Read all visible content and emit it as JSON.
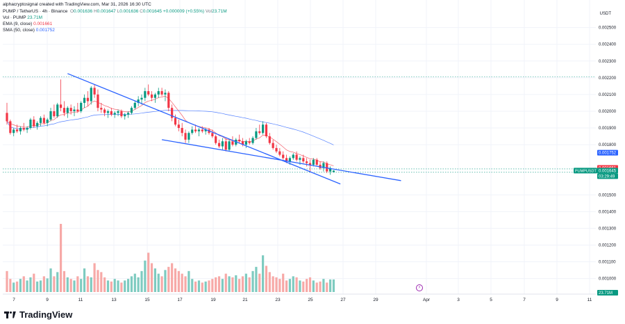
{
  "header": {
    "created_by": "alphacryptosignal created with TradingView.com, Mar 31, 2026 16:30 UTC",
    "symbol_line": "PUMP / TetherUS · 4h · Binance",
    "ohlc": {
      "O": "0.001636",
      "H": "0.001647",
      "L": "0.001636",
      "C": "0.001645",
      "change": "+0.000009 (+0.55%)",
      "vol": "23.71M"
    },
    "vol_line": {
      "label": "Vol · PUMP",
      "value": "23.71M"
    },
    "ema_line": {
      "label": "EMA (9, close)",
      "value": "0.001661"
    },
    "sma_line": {
      "label": "SMA (50, close)",
      "value": "0.001752"
    }
  },
  "currency_label": "USDT",
  "brand": "TradingView",
  "colors": {
    "up": "#089981",
    "down": "#f23645",
    "trendline": "#2962ff",
    "sma": "#2962ff",
    "ema": "#f23645",
    "grid": "#f0f3fa"
  },
  "chart_data": {
    "type": "candlestick",
    "timeframe": "4h",
    "x_tick_labels": [
      "7",
      "9",
      "11",
      "13",
      "15",
      "17",
      "19",
      "21",
      "23",
      "25",
      "27",
      "29",
      "Apr",
      "3",
      "5",
      "7",
      "9",
      "11"
    ],
    "y_tick_labels": [
      "0.002500",
      "0.002400",
      "0.002300",
      "0.002200",
      "0.002100",
      "0.002000",
      "0.001900",
      "0.001800",
      "0.001500",
      "0.001400",
      "0.001300",
      "0.001200",
      "0.001100",
      "0.001000"
    ],
    "ylim": [
      0.000965,
      0.00259
    ],
    "price_labels": [
      {
        "name": "SMA (50)",
        "value": "0.001752"
      },
      {
        "name": "EMA (9)",
        "value": "0.001661"
      },
      {
        "name": "PUMPUSDT",
        "value": "0.001645"
      },
      {
        "name": "countdown",
        "value": "03:29:49"
      },
      {
        "name": "Volume",
        "value": "23.71M"
      }
    ],
    "dashed_levels": [
      0.002205,
      0.001655,
      0.001635
    ],
    "trendlines": [
      {
        "name": "upper",
        "from": [
          18.0,
          0.002225
        ],
        "to": [
          99.0,
          0.001565
        ]
      },
      {
        "name": "lower",
        "from": [
          46.0,
          0.00183
        ],
        "to": [
          117.0,
          0.001585
        ]
      }
    ],
    "candles": [
      [
        0,
        0.00199,
        0.00205,
        0.00192,
        0.00194
      ],
      [
        1,
        0.00194,
        0.00195,
        0.00186,
        0.00187
      ],
      [
        2,
        0.00187,
        0.0019,
        0.00185,
        0.00189
      ],
      [
        3,
        0.00189,
        0.00192,
        0.00187,
        0.00188
      ],
      [
        4,
        0.00188,
        0.00191,
        0.00186,
        0.0019
      ],
      [
        5,
        0.0019,
        0.00193,
        0.00188,
        0.00189
      ],
      [
        6,
        0.00189,
        0.00191,
        0.00187,
        0.0019
      ],
      [
        7,
        0.0019,
        0.00196,
        0.00189,
        0.00195
      ],
      [
        8,
        0.00195,
        0.00197,
        0.0019,
        0.00191
      ],
      [
        9,
        0.00191,
        0.00194,
        0.00189,
        0.00193
      ],
      [
        10,
        0.00193,
        0.00197,
        0.00191,
        0.00196
      ],
      [
        11,
        0.00196,
        0.00198,
        0.00192,
        0.00193
      ],
      [
        12,
        0.00193,
        0.00196,
        0.00191,
        0.00195
      ],
      [
        13,
        0.00195,
        0.00202,
        0.00194,
        0.002
      ],
      [
        14,
        0.002,
        0.00204,
        0.00196,
        0.00197
      ],
      [
        15,
        0.00197,
        0.00205,
        0.00196,
        0.00204
      ],
      [
        16,
        0.00204,
        0.00219,
        0.002,
        0.00202
      ],
      [
        17,
        0.00202,
        0.00206,
        0.00197,
        0.00199
      ],
      [
        18,
        0.00199,
        0.00203,
        0.00196,
        0.00202
      ],
      [
        19,
        0.00202,
        0.00204,
        0.00198,
        0.002
      ],
      [
        20,
        0.002,
        0.00203,
        0.00197,
        0.00201
      ],
      [
        21,
        0.00201,
        0.00205,
        0.00199,
        0.002
      ],
      [
        22,
        0.002,
        0.00206,
        0.00199,
        0.00205
      ],
      [
        23,
        0.00205,
        0.0021,
        0.00202,
        0.00208
      ],
      [
        24,
        0.00208,
        0.00212,
        0.00203,
        0.00206
      ],
      [
        25,
        0.00206,
        0.00215,
        0.00204,
        0.00214
      ],
      [
        26,
        0.00214,
        0.00216,
        0.00208,
        0.0021
      ],
      [
        27,
        0.0021,
        0.00213,
        0.002,
        0.00202
      ],
      [
        28,
        0.00202,
        0.00205,
        0.00199,
        0.00201
      ],
      [
        29,
        0.00201,
        0.00202,
        0.00197,
        0.00199
      ],
      [
        30,
        0.00199,
        0.00201,
        0.00196,
        0.002
      ],
      [
        31,
        0.002,
        0.00202,
        0.00197,
        0.00198
      ],
      [
        32,
        0.00198,
        0.002,
        0.00196,
        0.00199
      ],
      [
        33,
        0.00199,
        0.00201,
        0.00197,
        0.002
      ],
      [
        34,
        0.002,
        0.00201,
        0.00196,
        0.00197
      ],
      [
        35,
        0.00197,
        0.00199,
        0.00195,
        0.00198
      ],
      [
        36,
        0.00198,
        0.002,
        0.00196,
        0.00199
      ],
      [
        37,
        0.00199,
        0.00203,
        0.00198,
        0.00202
      ],
      [
        38,
        0.00202,
        0.00206,
        0.00201,
        0.00205
      ],
      [
        39,
        0.00205,
        0.00209,
        0.00203,
        0.00207
      ],
      [
        40,
        0.00207,
        0.0021,
        0.00204,
        0.00208
      ],
      [
        41,
        0.00208,
        0.00214,
        0.00206,
        0.00212
      ],
      [
        42,
        0.00212,
        0.00216,
        0.00209,
        0.0021
      ],
      [
        43,
        0.0021,
        0.00212,
        0.00206,
        0.00208
      ],
      [
        44,
        0.00208,
        0.00211,
        0.00205,
        0.0021
      ],
      [
        45,
        0.0021,
        0.00214,
        0.00208,
        0.00212
      ],
      [
        46,
        0.00212,
        0.00214,
        0.00209,
        0.0021
      ],
      [
        47,
        0.0021,
        0.00213,
        0.00206,
        0.00211
      ],
      [
        48,
        0.00211,
        0.00212,
        0.002,
        0.00202
      ],
      [
        49,
        0.00202,
        0.00204,
        0.00194,
        0.00196
      ],
      [
        50,
        0.00196,
        0.00198,
        0.00191,
        0.00192
      ],
      [
        51,
        0.00192,
        0.00195,
        0.00188,
        0.0019
      ],
      [
        52,
        0.0019,
        0.00193,
        0.00185,
        0.00187
      ],
      [
        53,
        0.00187,
        0.00189,
        0.00181,
        0.00183
      ],
      [
        54,
        0.00183,
        0.00188,
        0.00181,
        0.00187
      ],
      [
        55,
        0.00187,
        0.00191,
        0.00186,
        0.00189
      ],
      [
        56,
        0.00189,
        0.00192,
        0.00187,
        0.00188
      ],
      [
        57,
        0.00188,
        0.0019,
        0.00185,
        0.00189
      ],
      [
        58,
        0.00189,
        0.00191,
        0.00187,
        0.00188
      ],
      [
        59,
        0.00188,
        0.0019,
        0.00186,
        0.00189
      ],
      [
        60,
        0.00189,
        0.0019,
        0.00186,
        0.00187
      ],
      [
        61,
        0.00187,
        0.00189,
        0.00184,
        0.00185
      ],
      [
        62,
        0.00185,
        0.00186,
        0.0018,
        0.00181
      ],
      [
        63,
        0.00181,
        0.00183,
        0.00178,
        0.00179
      ],
      [
        64,
        0.00179,
        0.00184,
        0.00177,
        0.00182
      ],
      [
        65,
        0.00182,
        0.00184,
        0.00176,
        0.00177
      ],
      [
        66,
        0.00177,
        0.00183,
        0.00176,
        0.00182
      ],
      [
        67,
        0.00182,
        0.00185,
        0.00179,
        0.0018
      ],
      [
        68,
        0.0018,
        0.00184,
        0.00179,
        0.00183
      ],
      [
        69,
        0.00183,
        0.00186,
        0.00181,
        0.00182
      ],
      [
        70,
        0.00182,
        0.00184,
        0.00179,
        0.0018
      ],
      [
        71,
        0.0018,
        0.00183,
        0.00178,
        0.00182
      ],
      [
        72,
        0.00182,
        0.00184,
        0.0018,
        0.00181
      ],
      [
        73,
        0.00181,
        0.00185,
        0.0018,
        0.00184
      ],
      [
        74,
        0.00184,
        0.0019,
        0.00183,
        0.00188
      ],
      [
        75,
        0.00188,
        0.00192,
        0.00186,
        0.00187
      ],
      [
        76,
        0.00187,
        0.00194,
        0.00186,
        0.00192
      ],
      [
        77,
        0.00192,
        0.00193,
        0.00184,
        0.00185
      ],
      [
        78,
        0.00185,
        0.00187,
        0.0018,
        0.00181
      ],
      [
        79,
        0.00181,
        0.00183,
        0.00177,
        0.00178
      ],
      [
        80,
        0.00178,
        0.0018,
        0.00175,
        0.00176
      ],
      [
        81,
        0.00176,
        0.00178,
        0.00173,
        0.00174
      ],
      [
        82,
        0.00174,
        0.00176,
        0.00171,
        0.00172
      ],
      [
        83,
        0.00172,
        0.00174,
        0.00169,
        0.0017
      ],
      [
        84,
        0.0017,
        0.00173,
        0.00168,
        0.00172
      ],
      [
        85,
        0.00172,
        0.00175,
        0.00171,
        0.00174
      ],
      [
        86,
        0.00174,
        0.00176,
        0.0017,
        0.00171
      ],
      [
        87,
        0.00171,
        0.00173,
        0.00168,
        0.00172
      ],
      [
        88,
        0.00172,
        0.00174,
        0.00169,
        0.0017
      ],
      [
        89,
        0.0017,
        0.00172,
        0.00167,
        0.00169
      ],
      [
        90,
        0.00169,
        0.00171,
        0.00164,
        0.00168
      ],
      [
        91,
        0.00168,
        0.00172,
        0.00167,
        0.00171
      ],
      [
        92,
        0.00171,
        0.00172,
        0.00167,
        0.00168
      ],
      [
        93,
        0.00168,
        0.0017,
        0.00165,
        0.00166
      ],
      [
        94,
        0.00166,
        0.0017,
        0.00164,
        0.00169
      ],
      [
        95,
        0.00169,
        0.0017,
        0.00163,
        0.00164
      ],
      [
        96,
        0.00164,
        0.00167,
        0.00162,
        0.00166
      ],
      [
        97,
        0.001636,
        0.001647,
        0.001636,
        0.001645
      ]
    ],
    "volume_millions": [
      40,
      25,
      18,
      20,
      25,
      30,
      22,
      28,
      35,
      20,
      22,
      30,
      26,
      45,
      30,
      38,
      130,
      40,
      28,
      25,
      22,
      30,
      25,
      45,
      30,
      28,
      55,
      42,
      38,
      28,
      22,
      20,
      25,
      22,
      18,
      22,
      25,
      30,
      35,
      28,
      40,
      60,
      75,
      55,
      45,
      35,
      30,
      42,
      48,
      55,
      45,
      40,
      35,
      30,
      40,
      25,
      20,
      22,
      18,
      20,
      22,
      25,
      28,
      30,
      25,
      35,
      30,
      28,
      32,
      25,
      30,
      35,
      28,
      40,
      48,
      35,
      70,
      50,
      38,
      30,
      28,
      25,
      35,
      22,
      25,
      30,
      28,
      22,
      20,
      25,
      28,
      22,
      18,
      20,
      25,
      18,
      24,
      24
    ]
  }
}
